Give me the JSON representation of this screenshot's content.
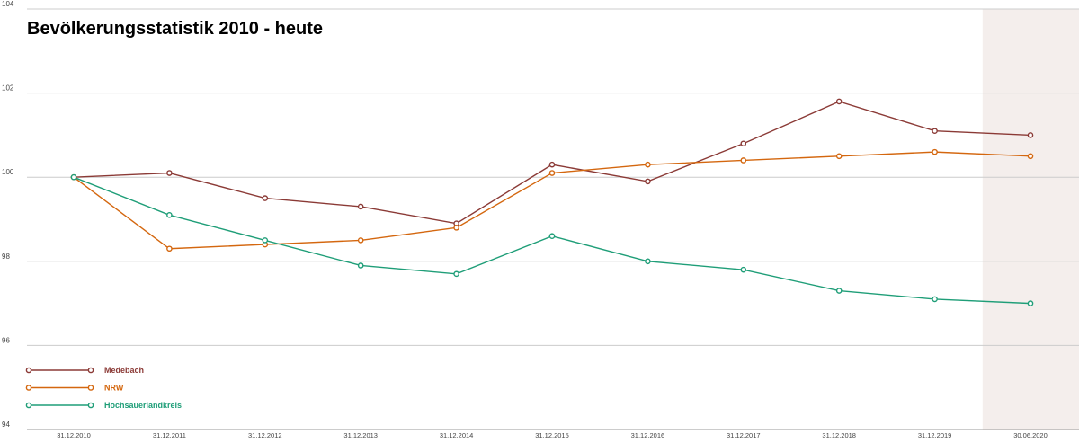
{
  "chart_data": {
    "type": "line",
    "title": "Bevölkerungsstatistik 2010 - heute",
    "xlabel": "",
    "ylabel": "",
    "categories": [
      "31.12.2010",
      "31.12.2011",
      "31.12.2012",
      "31.12.2013",
      "31.12.2014",
      "31.12.2015",
      "31.12.2016",
      "31.12.2017",
      "31.12.2018",
      "31.12.2019",
      "30.06.2020"
    ],
    "ylim": [
      94,
      104
    ],
    "yticks": [
      94,
      96,
      98,
      100,
      102,
      104
    ],
    "grid": true,
    "legend": "bottom-left",
    "highlight_category": "30.06.2020",
    "highlight_color": "#f4eeec",
    "series": [
      {
        "name": "Medebach",
        "color": "#8b3a36",
        "values": [
          100,
          100.1,
          99.5,
          99.3,
          98.9,
          100.3,
          99.9,
          100.8,
          101.8,
          101.1,
          101.0
        ]
      },
      {
        "name": "NRW",
        "color": "#d4670f",
        "values": [
          100,
          98.3,
          98.4,
          98.5,
          98.8,
          100.1,
          100.3,
          100.4,
          100.5,
          100.6,
          100.5
        ]
      },
      {
        "name": "Hochsauerlandkreis",
        "color": "#1f9e78",
        "values": [
          100,
          99.1,
          98.5,
          97.9,
          97.7,
          98.6,
          98.0,
          97.8,
          97.3,
          97.1,
          97.0
        ]
      }
    ]
  }
}
